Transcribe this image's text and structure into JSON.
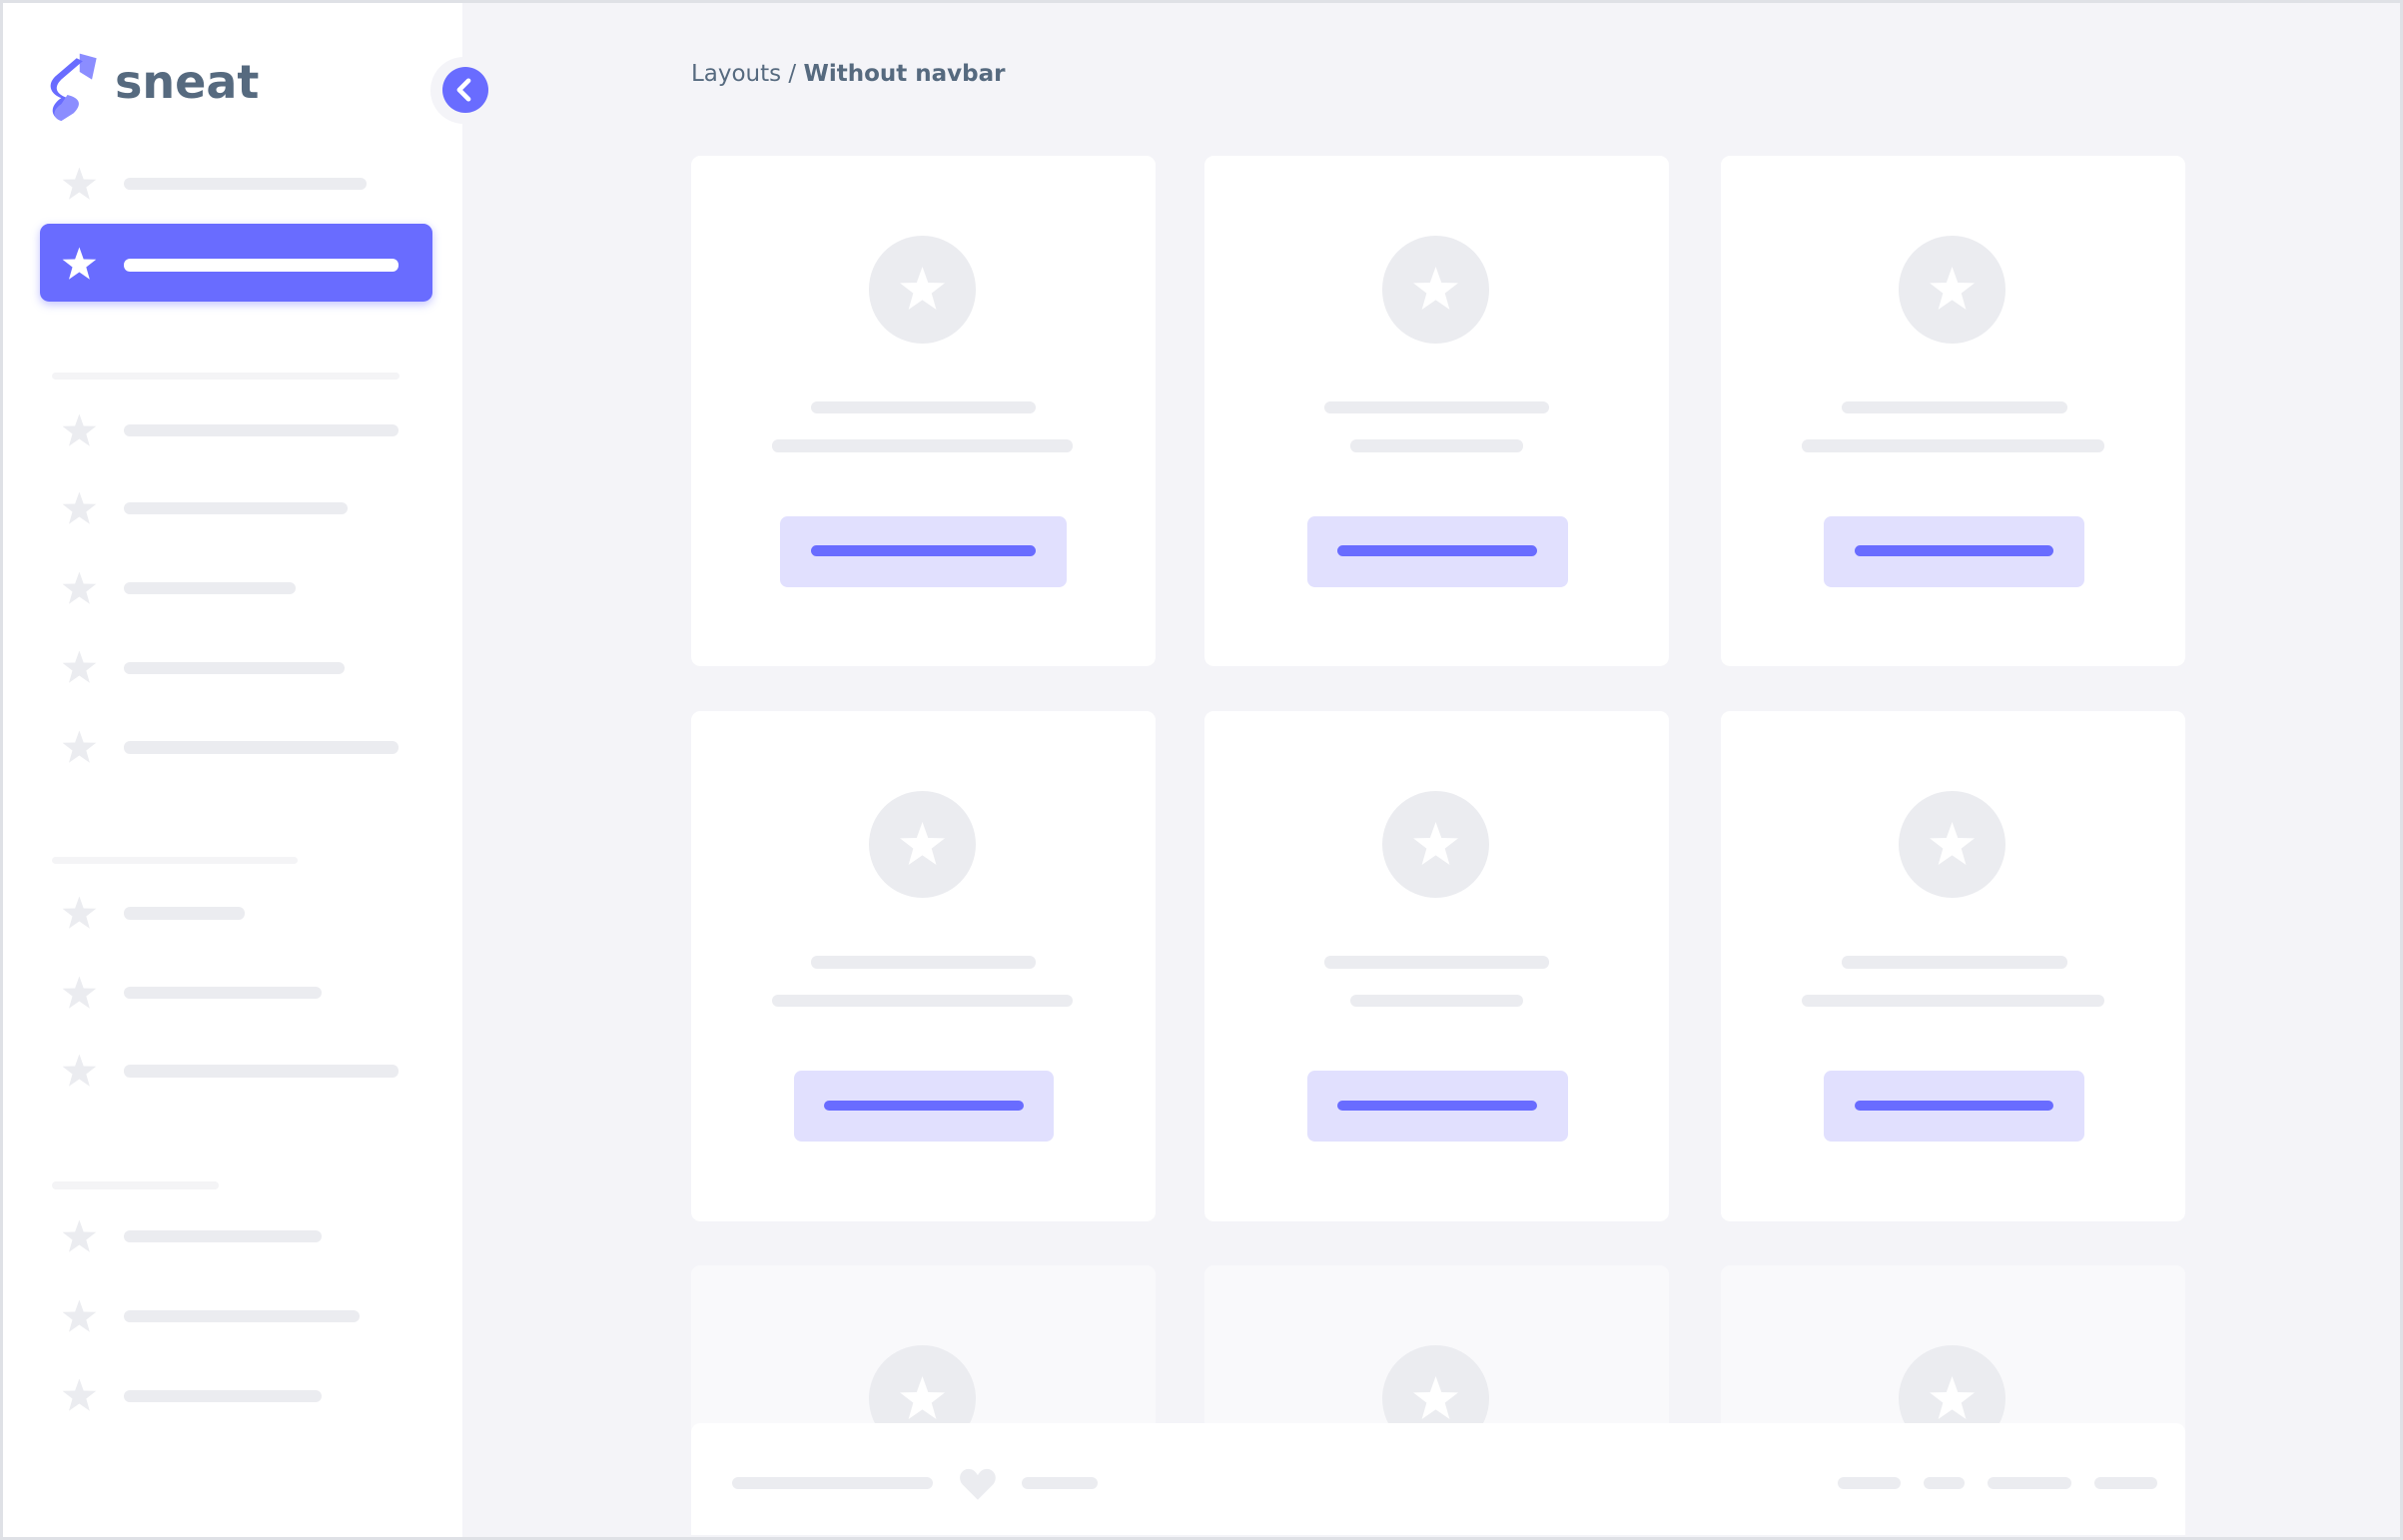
{
  "brand": {
    "name": "sneat",
    "logo_icon": "sneat-s-logo"
  },
  "breadcrumb": {
    "parent": "Layouts",
    "separator": " / ",
    "current": "Without navbar"
  },
  "sidebar": {
    "collapse_icon": "chevron-left-icon",
    "item_icon": "star-icon",
    "active_index": 1
  },
  "cards": {
    "avatar_icon": "star-icon"
  },
  "footer": {
    "icon": "heart-icon"
  },
  "colors": {
    "primary": "#696cff",
    "primary_light": "#e1e0fe",
    "text": "#566a7f",
    "placeholder": "#ebecf0",
    "background": "#f4f4f8"
  }
}
